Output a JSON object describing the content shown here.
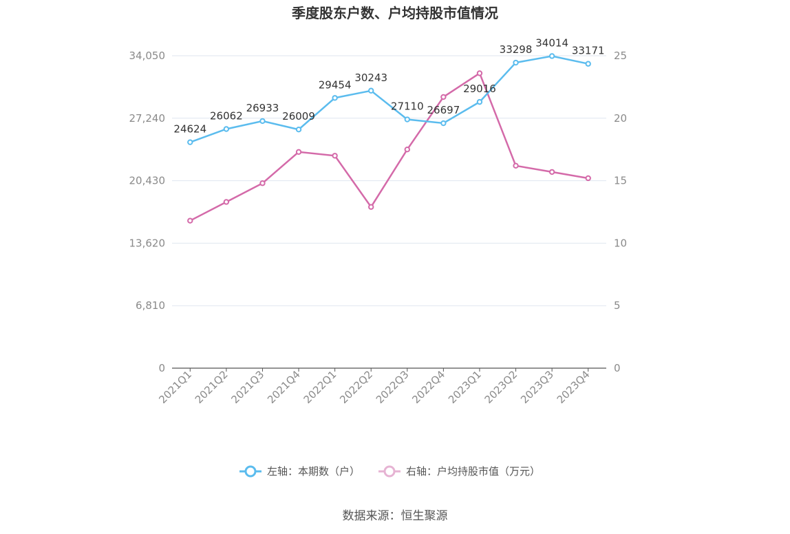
{
  "chart_data": {
    "type": "line",
    "title": "季度股东户数、户均持股市值情况",
    "categories": [
      "2021Q1",
      "2021Q2",
      "2021Q3",
      "2021Q4",
      "2022Q1",
      "2022Q2",
      "2022Q3",
      "2022Q4",
      "2023Q1",
      "2023Q2",
      "2023Q3",
      "2023Q4"
    ],
    "y_left": {
      "ticks": [
        "0",
        "6,810",
        "13,620",
        "20,430",
        "27,240",
        "34,050"
      ],
      "range": [
        0,
        34050
      ]
    },
    "y_right": {
      "ticks": [
        "0",
        "5",
        "10",
        "15",
        "20",
        "25"
      ],
      "range": [
        0,
        25
      ]
    },
    "series": [
      {
        "name": "左轴：本期数（户）",
        "axis": "left",
        "color": "#5bbcee",
        "values": [
          24624,
          26062,
          26933,
          26009,
          29454,
          30243,
          27110,
          26697,
          29016,
          33298,
          34014,
          33171
        ],
        "labels": [
          "24624",
          "26062",
          "26933",
          "26009",
          "29454",
          "30243",
          "27110",
          "26697",
          "29016",
          "33298",
          "34014",
          "33171"
        ]
      },
      {
        "name": "右轴：户均持股市值（万元）",
        "axis": "right",
        "color": "#d46aa9",
        "values": [
          11.8,
          13.3,
          14.8,
          17.3,
          17.0,
          12.9,
          17.5,
          21.7,
          23.6,
          16.2,
          15.7,
          15.2
        ]
      }
    ],
    "grid": true,
    "legend_position": "bottom"
  },
  "footer": {
    "source": "数据来源：恒生聚源"
  }
}
